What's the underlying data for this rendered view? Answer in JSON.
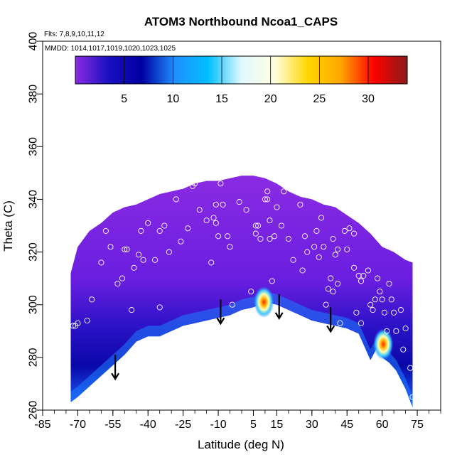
{
  "chart_data": {
    "type": "heatmap",
    "title": "ATOM3 Northbound Ncoa1_CAPS",
    "subtitle_flights": "Flts: 7,8,9,10,11,12",
    "subtitle_dates": "MMDD: 1014,1017,1019,1020,1023,1025",
    "xlabel": "Latitude (deg N)",
    "ylabel": "Theta (C)",
    "xlim": [
      -85,
      85
    ],
    "ylim": [
      260,
      400
    ],
    "xticks": [
      -85,
      -70,
      -55,
      -40,
      -25,
      -10,
      5,
      15,
      30,
      45,
      60,
      75
    ],
    "yticks": [
      260,
      280,
      300,
      320,
      340,
      360,
      380,
      400
    ],
    "colorbar": {
      "range": [
        0,
        34
      ],
      "ticks": [
        5,
        10,
        15,
        20,
        25,
        30
      ],
      "colors": [
        "#8a2be2",
        "#1a10c0",
        "#0000a0",
        "#1e90ff",
        "#00bfff",
        "#e0f8ff",
        "#ffffe0",
        "#ffd700",
        "#ffa500",
        "#ff0000",
        "#8b1a1a"
      ]
    },
    "envelope_top": [
      [
        -73,
        312
      ],
      [
        -70,
        322
      ],
      [
        -65,
        328
      ],
      [
        -60,
        331
      ],
      [
        -55,
        335
      ],
      [
        -50,
        337
      ],
      [
        -45,
        338
      ],
      [
        -40,
        340
      ],
      [
        -35,
        342
      ],
      [
        -30,
        343
      ],
      [
        -25,
        344
      ],
      [
        -20,
        346
      ],
      [
        -15,
        347
      ],
      [
        -10,
        347
      ],
      [
        -5,
        348
      ],
      [
        0,
        349
      ],
      [
        5,
        349
      ],
      [
        10,
        348
      ],
      [
        15,
        346
      ],
      [
        20,
        343
      ],
      [
        25,
        341
      ],
      [
        30,
        340
      ],
      [
        35,
        338
      ],
      [
        40,
        337
      ],
      [
        45,
        334
      ],
      [
        50,
        331
      ],
      [
        55,
        327
      ],
      [
        60,
        322
      ],
      [
        65,
        320
      ],
      [
        70,
        317
      ],
      [
        73,
        316
      ]
    ],
    "envelope_bottom": [
      [
        -73,
        263
      ],
      [
        -70,
        265
      ],
      [
        -65,
        269
      ],
      [
        -60,
        273
      ],
      [
        -55,
        277
      ],
      [
        -50,
        281
      ],
      [
        -45,
        286
      ],
      [
        -40,
        288
      ],
      [
        -35,
        288
      ],
      [
        -30,
        290
      ],
      [
        -25,
        292
      ],
      [
        -20,
        293
      ],
      [
        -15,
        294
      ],
      [
        -10,
        295
      ],
      [
        -5,
        296
      ],
      [
        0,
        298
      ],
      [
        5,
        299
      ],
      [
        10,
        301
      ],
      [
        15,
        300
      ],
      [
        20,
        298
      ],
      [
        25,
        296
      ],
      [
        30,
        294
      ],
      [
        35,
        293
      ],
      [
        40,
        292
      ],
      [
        45,
        291
      ],
      [
        50,
        289
      ],
      [
        55,
        279
      ],
      [
        58,
        284
      ],
      [
        60,
        280
      ],
      [
        63,
        278
      ],
      [
        66,
        275
      ],
      [
        70,
        268
      ],
      [
        73,
        261
      ]
    ],
    "hotspots": [
      {
        "lat": 9.5,
        "theta": 301,
        "value": 27
      },
      {
        "lat": 60.5,
        "theta": 285,
        "value": 31
      }
    ],
    "arrows": [
      {
        "lat": -54,
        "theta": 281
      },
      {
        "lat": -9,
        "theta": 302
      },
      {
        "lat": 16,
        "theta": 304
      },
      {
        "lat": 38,
        "theta": 299
      }
    ],
    "points": [
      [
        -77,
        296
      ],
      [
        -77,
        311
      ],
      [
        -75,
        286
      ],
      [
        -72,
        292
      ],
      [
        -71,
        292
      ],
      [
        -70,
        293
      ],
      [
        -68,
        332
      ],
      [
        -66,
        294
      ],
      [
        -64,
        302
      ],
      [
        -62,
        263
      ],
      [
        -60,
        316
      ],
      [
        -58,
        328
      ],
      [
        -56,
        322
      ],
      [
        -53,
        308
      ],
      [
        -51,
        310
      ],
      [
        -50,
        321
      ],
      [
        -49,
        321
      ],
      [
        -47,
        298
      ],
      [
        -46,
        314
      ],
      [
        -44,
        319
      ],
      [
        -43,
        328
      ],
      [
        -42,
        317
      ],
      [
        -40,
        331
      ],
      [
        -37,
        317
      ],
      [
        -35,
        328
      ],
      [
        -35,
        299
      ],
      [
        -33,
        330
      ],
      [
        -31,
        320
      ],
      [
        -28,
        340
      ],
      [
        -26,
        324
      ],
      [
        -23,
        329
      ],
      [
        -21,
        345
      ],
      [
        -20,
        346
      ],
      [
        -18,
        336
      ],
      [
        -15,
        332
      ],
      [
        -13,
        316
      ],
      [
        -12,
        333
      ],
      [
        -11,
        338
      ],
      [
        -11,
        331
      ],
      [
        -10,
        326
      ],
      [
        -9,
        346
      ],
      [
        -8,
        338
      ],
      [
        -6,
        326
      ],
      [
        -5,
        322
      ],
      [
        -4,
        300
      ],
      [
        -1,
        339
      ],
      [
        2,
        336
      ],
      [
        4,
        305
      ],
      [
        6,
        327
      ],
      [
        6,
        330
      ],
      [
        7,
        330
      ],
      [
        8,
        325
      ],
      [
        10,
        340
      ],
      [
        11,
        343
      ],
      [
        11,
        340
      ],
      [
        12,
        332
      ],
      [
        12,
        325
      ],
      [
        13,
        309
      ],
      [
        14,
        326
      ],
      [
        15,
        337
      ],
      [
        17,
        330
      ],
      [
        18,
        343
      ],
      [
        20,
        325
      ],
      [
        22,
        317
      ],
      [
        25,
        338
      ],
      [
        26,
        313
      ],
      [
        27,
        326
      ],
      [
        28,
        320
      ],
      [
        31,
        322
      ],
      [
        32,
        328
      ],
      [
        33,
        318
      ],
      [
        34,
        333
      ],
      [
        35,
        322
      ],
      [
        36,
        300
      ],
      [
        37,
        306
      ],
      [
        38,
        310
      ],
      [
        39,
        305
      ],
      [
        39,
        325
      ],
      [
        40,
        319
      ],
      [
        41,
        321
      ],
      [
        41,
        308
      ],
      [
        42,
        293
      ],
      [
        44,
        328
      ],
      [
        45,
        321
      ],
      [
        46,
        329
      ],
      [
        48,
        327
      ],
      [
        48,
        314
      ],
      [
        49,
        297
      ],
      [
        50,
        311
      ],
      [
        51,
        309
      ],
      [
        51,
        293
      ],
      [
        52,
        311
      ],
      [
        54,
        313
      ],
      [
        55,
        300
      ],
      [
        56,
        298
      ],
      [
        57,
        302
      ],
      [
        58,
        310
      ],
      [
        59,
        305
      ],
      [
        60,
        302
      ],
      [
        61,
        297
      ],
      [
        62,
        290
      ],
      [
        63,
        308
      ],
      [
        64,
        302
      ],
      [
        65,
        297
      ],
      [
        66,
        290
      ],
      [
        68,
        298
      ],
      [
        69,
        283
      ],
      [
        70,
        291
      ],
      [
        72,
        276
      ],
      [
        73,
        265
      ],
      [
        76,
        296
      ],
      [
        77,
        302
      ],
      [
        79,
        289
      ]
    ]
  }
}
